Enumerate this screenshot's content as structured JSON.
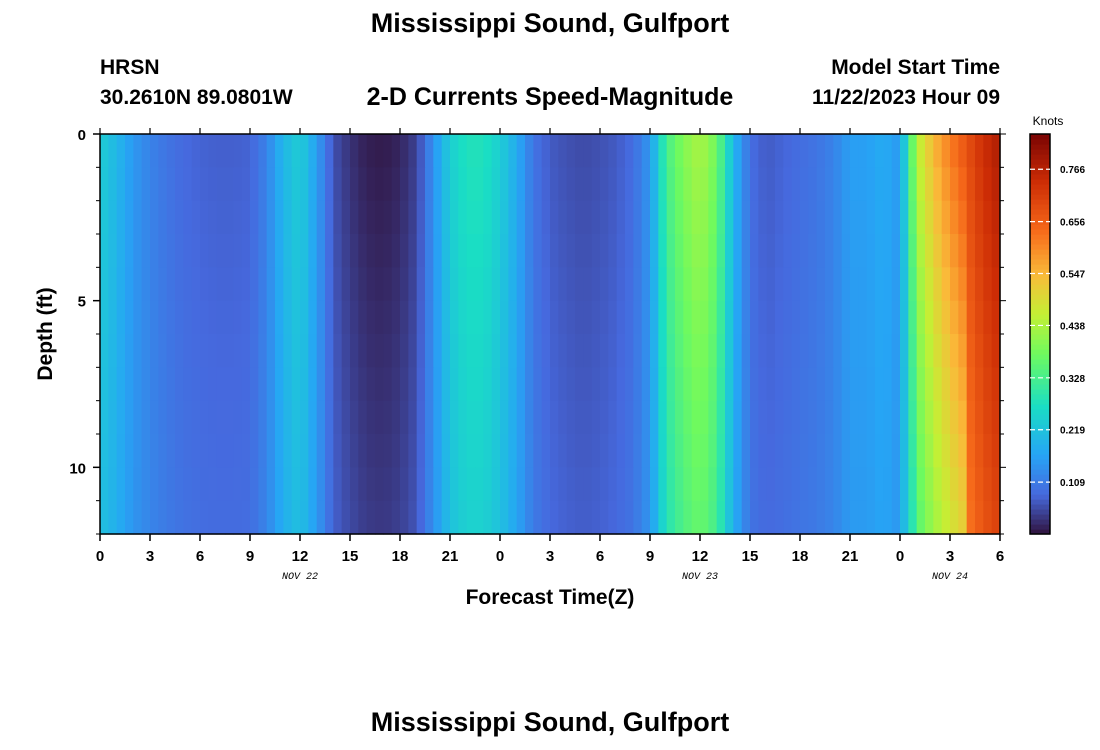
{
  "header": {
    "title": "Mississippi Sound, Gulfport",
    "station": "HRSN",
    "coords": "30.2610N  89.0801W",
    "subtitle": "2-D Currents Speed-Magnitude",
    "model_start_label": "Model Start Time",
    "model_start_value": "11/22/2023 Hour 09",
    "next_title": "Mississippi Sound, Gulfport"
  },
  "chart_data": {
    "type": "heatmap",
    "xlabel": "Forecast Time(Z)",
    "ylabel": "Depth (ft)",
    "colorbar_label": "Knots",
    "xlim": [
      0,
      54
    ],
    "ylim": [
      12,
      0
    ],
    "x_ticks": [
      0,
      3,
      6,
      9,
      12,
      15,
      18,
      21,
      24,
      27,
      30,
      33,
      36,
      39,
      42,
      45,
      48,
      51,
      54
    ],
    "x_tick_labels": [
      "0",
      "3",
      "6",
      "9",
      "12",
      "15",
      "18",
      "21",
      "0",
      "3",
      "6",
      "9",
      "12",
      "15",
      "18",
      "21",
      "0",
      "3",
      "6"
    ],
    "date_labels": [
      {
        "x": 12,
        "text": "NOV 22"
      },
      {
        "x": 36,
        "text": "NOV 23"
      },
      {
        "x": 51,
        "text": "NOV 24"
      }
    ],
    "y_ticks": [
      0,
      5,
      10
    ],
    "y_tick_labels": [
      "0",
      "5",
      "10"
    ],
    "colorbar_ticks": [
      0.109,
      0.219,
      0.328,
      0.438,
      0.547,
      0.656,
      0.766
    ],
    "colorbar_tick_labels": [
      "0.109",
      "0.219",
      "0.328",
      "0.438",
      "0.547",
      "0.656",
      "0.766"
    ],
    "cmin": 0.0,
    "cmax": 0.84,
    "time_profile": [
      [
        0,
        0.24
      ],
      [
        1,
        0.2
      ],
      [
        2,
        0.15
      ],
      [
        3,
        0.12
      ],
      [
        4,
        0.1
      ],
      [
        5,
        0.085
      ],
      [
        6,
        0.078
      ],
      [
        7,
        0.075
      ],
      [
        8,
        0.075
      ],
      [
        9,
        0.078
      ],
      [
        10,
        0.12
      ],
      [
        11,
        0.2
      ],
      [
        12,
        0.24
      ],
      [
        13,
        0.16
      ],
      [
        14,
        0.06
      ],
      [
        15,
        0.03
      ],
      [
        16,
        0.012
      ],
      [
        17,
        0.008
      ],
      [
        18,
        0.018
      ],
      [
        19,
        0.045
      ],
      [
        20,
        0.14
      ],
      [
        21,
        0.24
      ],
      [
        22,
        0.28
      ],
      [
        23,
        0.28
      ],
      [
        24,
        0.24
      ],
      [
        25,
        0.18
      ],
      [
        26,
        0.1
      ],
      [
        27,
        0.07
      ],
      [
        28,
        0.06
      ],
      [
        29,
        0.055
      ],
      [
        30,
        0.06
      ],
      [
        31,
        0.07
      ],
      [
        32,
        0.09
      ],
      [
        33,
        0.15
      ],
      [
        34,
        0.33
      ],
      [
        35,
        0.4
      ],
      [
        36,
        0.44
      ],
      [
        37,
        0.38
      ],
      [
        38,
        0.2
      ],
      [
        39,
        0.09
      ],
      [
        40,
        0.07
      ],
      [
        41,
        0.08
      ],
      [
        42,
        0.09
      ],
      [
        43,
        0.1
      ],
      [
        44,
        0.12
      ],
      [
        45,
        0.16
      ],
      [
        46,
        0.16
      ],
      [
        47,
        0.18
      ],
      [
        48,
        0.15
      ],
      [
        49,
        0.45
      ],
      [
        50,
        0.55
      ],
      [
        51,
        0.62
      ],
      [
        52,
        0.68
      ],
      [
        53,
        0.74
      ],
      [
        54,
        0.78
      ]
    ],
    "depth_profile": [
      0,
      0.07,
      0.14,
      0.21,
      0.28,
      0.35,
      0.42,
      0.48,
      0.54,
      0.6,
      0.66,
      0.72,
      0.78
    ]
  }
}
